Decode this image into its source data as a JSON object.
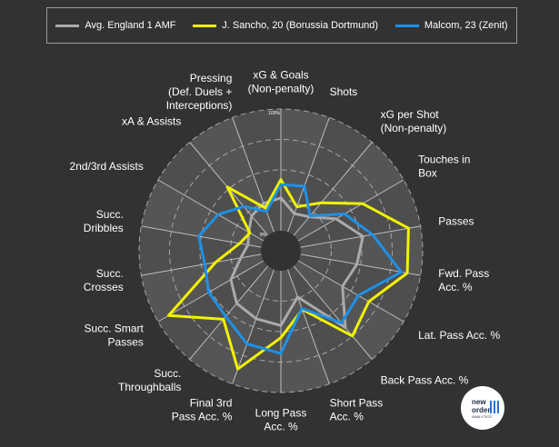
{
  "legend": [
    {
      "label": "Avg. England 1 AMF",
      "color": "#aaaaaa"
    },
    {
      "label": "J. Sancho, 20 (Borussia Dortmund)",
      "color": "#f2f200"
    },
    {
      "label": "Malcom, 23 (Zenit)",
      "color": "#1e90e6"
    }
  ],
  "ring_labels": {
    "outer": "100%",
    "inner": "0%"
  },
  "badge": {
    "line1": "new",
    "line2": "order",
    "line3": "ANALYTICS"
  },
  "chart_data": {
    "type": "radar",
    "scale": [
      0,
      100
    ],
    "categories": [
      "xG & Goals\n(Non-penalty)",
      "Shots",
      "xG per Shot\n(Non-penalty)",
      "Touches in\nBox",
      "Passes",
      "Fwd. Pass\nAcc. %",
      "Lat. Pass Acc. %",
      "Back Pass Acc. %",
      "Short Pass\nAcc. %",
      "Long Pass\nAcc. %",
      "Final 3rd\nPass Acc. %",
      "Succ.\nThroughballs",
      "Succ. Smart\nPasses",
      "Succ.\nCrosses",
      "Succ.\nDribbles",
      "2nd/3rd Assists",
      "xA & Assists",
      "Pressing\n(Def. Duels +\nInterceptions)"
    ],
    "series": [
      {
        "name": "Avg. England 1 AMF",
        "color": "#aaaaaa",
        "values": [
          27,
          16,
          20,
          36,
          52,
          47,
          42,
          66,
          24,
          45,
          43,
          40,
          31,
          17,
          11,
          14,
          21,
          25
        ]
      },
      {
        "name": "J. Sancho, 20 (Borussia Dortmund)",
        "color": "#f2f200",
        "values": [
          42,
          22,
          35,
          61,
          90,
          89,
          67,
          75,
          35,
          55,
          87,
          57,
          90,
          38,
          18,
          13,
          52,
          21
        ]
      },
      {
        "name": "Malcom, 23 (Zenit)",
        "color": "#1e90e6",
        "values": [
          38,
          40,
          21,
          44,
          60,
          84,
          57,
          61,
          34,
          68,
          65,
          54,
          52,
          47,
          52,
          43,
          31,
          18
        ]
      }
    ]
  }
}
